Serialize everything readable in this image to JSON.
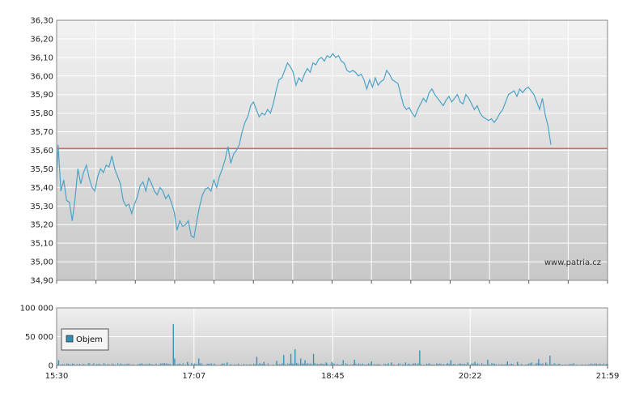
{
  "watermark": "www.patria.cz",
  "chart_data": [
    {
      "type": "line",
      "name_hint": "price",
      "ylim": [
        34.9,
        36.3
      ],
      "y_ticks": [
        "36,30",
        "36,20",
        "36,10",
        "36,00",
        "35,90",
        "35,80",
        "35,70",
        "35,60",
        "35,50",
        "35,40",
        "35,30",
        "35,20",
        "35,10",
        "35,00",
        "34,90"
      ],
      "y_tick_values": [
        36.3,
        36.2,
        36.1,
        36.0,
        35.9,
        35.8,
        35.7,
        35.6,
        35.5,
        35.4,
        35.3,
        35.2,
        35.1,
        35.0,
        34.9
      ],
      "reference_line": 35.61,
      "line_color": "#4aa3c8",
      "reference_color": "#e03a3a",
      "x_time_range": [
        "15:30",
        "21:59"
      ],
      "points": [
        [
          "15:30",
          35.44
        ],
        [
          "15:31",
          35.63
        ],
        [
          "15:33",
          35.38
        ],
        [
          "15:35",
          35.44
        ],
        [
          "15:37",
          35.33
        ],
        [
          "15:39",
          35.32
        ],
        [
          "15:41",
          35.22
        ],
        [
          "15:43",
          35.34
        ],
        [
          "15:45",
          35.5
        ],
        [
          "15:47",
          35.42
        ],
        [
          "15:49",
          35.48
        ],
        [
          "15:51",
          35.52
        ],
        [
          "15:53",
          35.45
        ],
        [
          "15:55",
          35.4
        ],
        [
          "15:57",
          35.38
        ],
        [
          "15:59",
          35.46
        ],
        [
          "16:01",
          35.5
        ],
        [
          "16:03",
          35.48
        ],
        [
          "16:05",
          35.52
        ],
        [
          "16:07",
          35.51
        ],
        [
          "16:09",
          35.57
        ],
        [
          "16:11",
          35.5
        ],
        [
          "16:13",
          35.46
        ],
        [
          "16:15",
          35.42
        ],
        [
          "16:17",
          35.33
        ],
        [
          "16:19",
          35.3
        ],
        [
          "16:21",
          35.31
        ],
        [
          "16:23",
          35.26
        ],
        [
          "16:25",
          35.31
        ],
        [
          "16:27",
          35.35
        ],
        [
          "16:29",
          35.41
        ],
        [
          "16:31",
          35.43
        ],
        [
          "16:33",
          35.38
        ],
        [
          "16:35",
          35.45
        ],
        [
          "16:37",
          35.42
        ],
        [
          "16:39",
          35.38
        ],
        [
          "16:41",
          35.36
        ],
        [
          "16:43",
          35.4
        ],
        [
          "16:45",
          35.38
        ],
        [
          "16:47",
          35.34
        ],
        [
          "16:49",
          35.36
        ],
        [
          "16:51",
          35.32
        ],
        [
          "16:53",
          35.27
        ],
        [
          "16:55",
          35.17
        ],
        [
          "16:57",
          35.22
        ],
        [
          "16:59",
          35.19
        ],
        [
          "17:01",
          35.2
        ],
        [
          "17:03",
          35.22
        ],
        [
          "17:05",
          35.14
        ],
        [
          "17:07",
          35.13
        ],
        [
          "17:09",
          35.22
        ],
        [
          "17:11",
          35.3
        ],
        [
          "17:13",
          35.36
        ],
        [
          "17:15",
          35.39
        ],
        [
          "17:17",
          35.4
        ],
        [
          "17:19",
          35.38
        ],
        [
          "17:21",
          35.44
        ],
        [
          "17:23",
          35.4
        ],
        [
          "17:25",
          35.46
        ],
        [
          "17:27",
          35.5
        ],
        [
          "17:29",
          35.55
        ],
        [
          "17:31",
          35.62
        ],
        [
          "17:33",
          35.53
        ],
        [
          "17:35",
          35.58
        ],
        [
          "17:37",
          35.6
        ],
        [
          "17:39",
          35.63
        ],
        [
          "17:41",
          35.7
        ],
        [
          "17:43",
          35.75
        ],
        [
          "17:45",
          35.78
        ],
        [
          "17:47",
          35.84
        ],
        [
          "17:49",
          35.86
        ],
        [
          "17:51",
          35.82
        ],
        [
          "17:53",
          35.78
        ],
        [
          "17:55",
          35.8
        ],
        [
          "17:57",
          35.79
        ],
        [
          "17:59",
          35.82
        ],
        [
          "18:01",
          35.8
        ],
        [
          "18:03",
          35.85
        ],
        [
          "18:05",
          35.92
        ],
        [
          "18:07",
          35.98
        ],
        [
          "18:09",
          35.99
        ],
        [
          "18:11",
          36.03
        ],
        [
          "18:13",
          36.07
        ],
        [
          "18:15",
          36.05
        ],
        [
          "18:17",
          36.02
        ],
        [
          "18:19",
          35.95
        ],
        [
          "18:21",
          35.99
        ],
        [
          "18:23",
          35.97
        ],
        [
          "18:25",
          36.01
        ],
        [
          "18:27",
          36.04
        ],
        [
          "18:29",
          36.02
        ],
        [
          "18:31",
          36.07
        ],
        [
          "18:33",
          36.06
        ],
        [
          "18:35",
          36.09
        ],
        [
          "18:37",
          36.1
        ],
        [
          "18:39",
          36.08
        ],
        [
          "18:41",
          36.11
        ],
        [
          "18:43",
          36.1
        ],
        [
          "18:45",
          36.12
        ],
        [
          "18:47",
          36.1
        ],
        [
          "18:49",
          36.11
        ],
        [
          "18:51",
          36.08
        ],
        [
          "18:53",
          36.07
        ],
        [
          "18:55",
          36.03
        ],
        [
          "18:57",
          36.02
        ],
        [
          "18:59",
          36.03
        ],
        [
          "19:01",
          36.02
        ],
        [
          "19:03",
          36.0
        ],
        [
          "19:05",
          36.01
        ],
        [
          "19:07",
          35.98
        ],
        [
          "19:09",
          35.93
        ],
        [
          "19:11",
          35.98
        ],
        [
          "19:13",
          35.94
        ],
        [
          "19:15",
          35.99
        ],
        [
          "19:17",
          35.95
        ],
        [
          "19:19",
          35.97
        ],
        [
          "19:21",
          35.98
        ],
        [
          "19:23",
          36.03
        ],
        [
          "19:25",
          36.01
        ],
        [
          "19:27",
          35.98
        ],
        [
          "19:29",
          35.97
        ],
        [
          "19:31",
          35.96
        ],
        [
          "19:33",
          35.9
        ],
        [
          "19:35",
          35.84
        ],
        [
          "19:37",
          35.82
        ],
        [
          "19:39",
          35.83
        ],
        [
          "19:41",
          35.8
        ],
        [
          "19:43",
          35.78
        ],
        [
          "19:45",
          35.82
        ],
        [
          "19:47",
          35.85
        ],
        [
          "19:49",
          35.88
        ],
        [
          "19:51",
          35.86
        ],
        [
          "19:53",
          35.91
        ],
        [
          "19:55",
          35.93
        ],
        [
          "19:57",
          35.9
        ],
        [
          "19:59",
          35.88
        ],
        [
          "20:01",
          35.86
        ],
        [
          "20:03",
          35.84
        ],
        [
          "20:05",
          35.87
        ],
        [
          "20:07",
          35.89
        ],
        [
          "20:09",
          35.86
        ],
        [
          "20:11",
          35.88
        ],
        [
          "20:13",
          35.9
        ],
        [
          "20:15",
          35.86
        ],
        [
          "20:17",
          35.85
        ],
        [
          "20:19",
          35.9
        ],
        [
          "20:21",
          35.88
        ],
        [
          "20:23",
          35.85
        ],
        [
          "20:25",
          35.82
        ],
        [
          "20:27",
          35.84
        ],
        [
          "20:29",
          35.8
        ],
        [
          "20:31",
          35.78
        ],
        [
          "20:33",
          35.77
        ],
        [
          "20:35",
          35.76
        ],
        [
          "20:37",
          35.77
        ],
        [
          "20:39",
          35.75
        ],
        [
          "20:41",
          35.77
        ],
        [
          "20:43",
          35.8
        ],
        [
          "20:45",
          35.82
        ],
        [
          "20:47",
          35.86
        ],
        [
          "20:49",
          35.9
        ],
        [
          "20:51",
          35.91
        ],
        [
          "20:53",
          35.92
        ],
        [
          "20:55",
          35.89
        ],
        [
          "20:57",
          35.93
        ],
        [
          "20:59",
          35.91
        ],
        [
          "21:01",
          35.93
        ],
        [
          "21:03",
          35.94
        ],
        [
          "21:05",
          35.92
        ],
        [
          "21:07",
          35.9
        ],
        [
          "21:09",
          35.86
        ],
        [
          "21:11",
          35.82
        ],
        [
          "21:13",
          35.88
        ],
        [
          "21:15",
          35.79
        ],
        [
          "21:17",
          35.73
        ],
        [
          "21:19",
          35.63
        ]
      ]
    },
    {
      "type": "bar",
      "name_hint": "volume",
      "ylim": [
        0,
        100000
      ],
      "y_ticks": [
        "100 000",
        "50 000",
        "0"
      ],
      "y_tick_values": [
        100000,
        50000,
        0
      ],
      "x_ticks": [
        "15:30",
        "17:07",
        "18:45",
        "20:22",
        "21:59"
      ],
      "legend": [
        "Objem"
      ],
      "bar_color": "#2f8fb8",
      "spikes": [
        [
          "15:31",
          9000
        ],
        [
          "16:52",
          72000
        ],
        [
          "16:53",
          12000
        ],
        [
          "17:02",
          6000
        ],
        [
          "17:10",
          12000
        ],
        [
          "17:30",
          5000
        ],
        [
          "17:51",
          15000
        ],
        [
          "17:56",
          6000
        ],
        [
          "18:05",
          8000
        ],
        [
          "18:10",
          18000
        ],
        [
          "18:15",
          20000
        ],
        [
          "18:18",
          28000
        ],
        [
          "18:22",
          12000
        ],
        [
          "18:25",
          9000
        ],
        [
          "18:31",
          20000
        ],
        [
          "18:40",
          5000
        ],
        [
          "18:44",
          6000
        ],
        [
          "18:52",
          9000
        ],
        [
          "19:00",
          10000
        ],
        [
          "19:12",
          7000
        ],
        [
          "19:26",
          5000
        ],
        [
          "19:36",
          5000
        ],
        [
          "19:46",
          26000
        ],
        [
          "20:08",
          9000
        ],
        [
          "20:20",
          5000
        ],
        [
          "20:25",
          6000
        ],
        [
          "20:34",
          10000
        ],
        [
          "20:48",
          7000
        ],
        [
          "20:55",
          6000
        ],
        [
          "21:05",
          5000
        ],
        [
          "21:10",
          11000
        ],
        [
          "21:15",
          5000
        ],
        [
          "21:18",
          17000
        ]
      ]
    }
  ]
}
